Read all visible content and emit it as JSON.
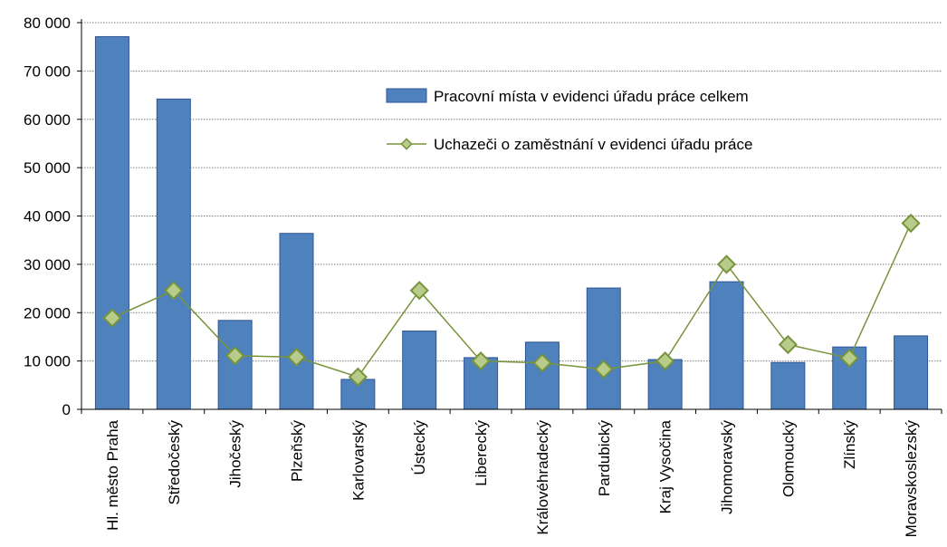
{
  "chart_data": {
    "type": "bar",
    "categories": [
      "Hl. město Praha",
      "Středočeský",
      "Jihočeský",
      "Plzeňský",
      "Karlovarský",
      "Ústecký",
      "Liberecký",
      "Královéhradecký",
      "Pardubický",
      "Kraj Vysočina",
      "Jihomoravský",
      "Olomoucký",
      "Zlínský",
      "Moravskoslezský"
    ],
    "series": [
      {
        "name": "Pracovní místa v evidenci úřadu práce celkem",
        "kind": "bar",
        "color": "#4F81BD",
        "values": [
          77100,
          64200,
          18400,
          36400,
          6200,
          16200,
          10700,
          13900,
          25100,
          10300,
          26400,
          9700,
          12900,
          15200
        ]
      },
      {
        "name": "Uchazeči o zaměstnání v evidenci úřadu práce",
        "kind": "line",
        "color": "#77933C",
        "values": [
          18900,
          24600,
          11100,
          10800,
          6700,
          24600,
          10000,
          9600,
          8300,
          10000,
          30000,
          13400,
          10600,
          38500
        ]
      }
    ],
    "ylim": [
      0,
      80000
    ],
    "yticks": [
      "0",
      "10 000",
      "20 000",
      "30 000",
      "40 000",
      "50 000",
      "60 000",
      "70 000",
      "80 000"
    ],
    "ytick_values": [
      0,
      10000,
      20000,
      30000,
      40000,
      50000,
      60000,
      70000,
      80000
    ],
    "grid": true,
    "legend_position": "top-right (inside plot)"
  }
}
